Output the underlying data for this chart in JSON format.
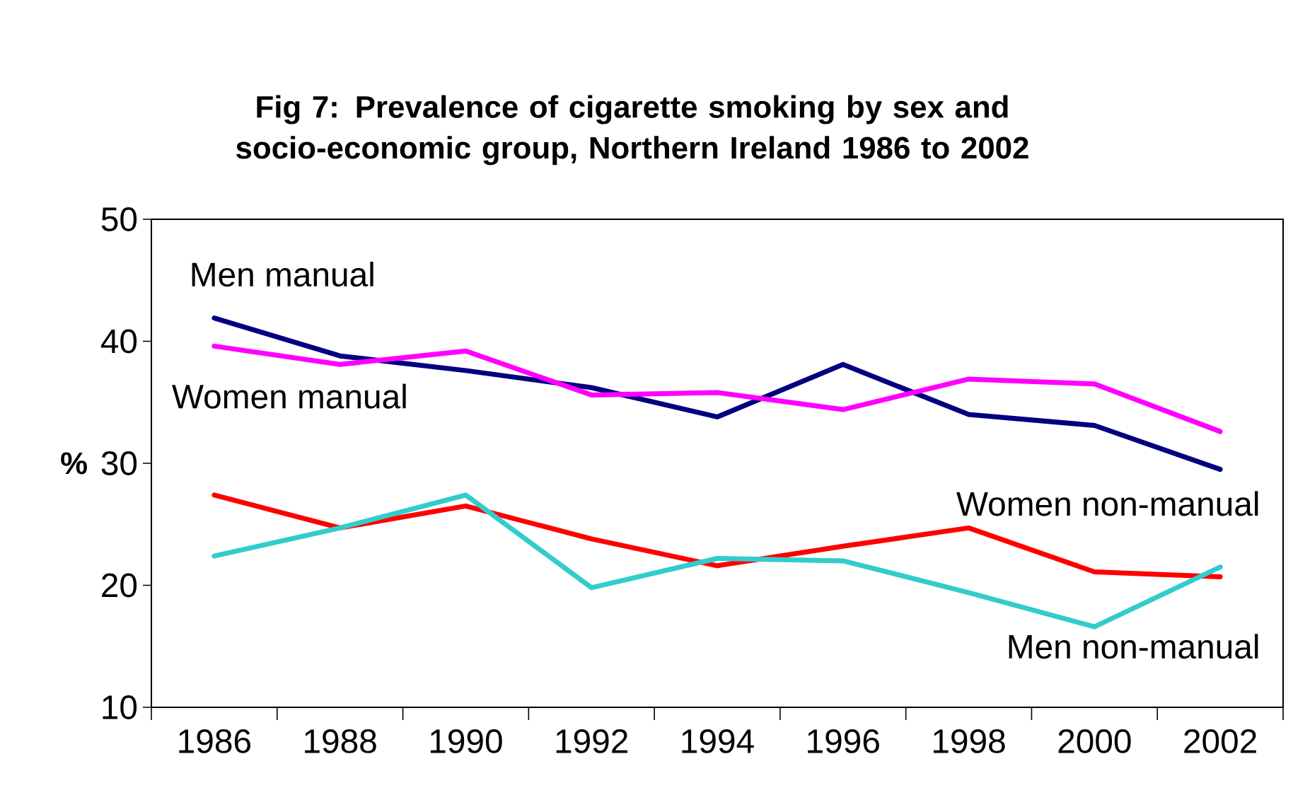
{
  "chart_data": {
    "type": "line",
    "title": "Fig 7: Prevalence of cigarette smoking by sex and socio-economic group, Northern Ireland 1986 to 2002",
    "ylabel": "%",
    "categories": [
      "1986",
      "1988",
      "1990",
      "1992",
      "1994",
      "1996",
      "1998",
      "2000",
      "2002"
    ],
    "ylim": [
      10,
      50
    ],
    "yticks": [
      10,
      20,
      30,
      40,
      50
    ],
    "series": [
      {
        "name": "Men manual",
        "color": "#000080",
        "values": [
          41.9,
          38.8,
          37.6,
          36.2,
          33.8,
          38.1,
          34.0,
          33.1,
          29.5
        ]
      },
      {
        "name": "Women manual",
        "color": "#ff00ff",
        "values": [
          39.6,
          38.1,
          39.2,
          35.6,
          35.8,
          34.4,
          36.9,
          36.5,
          32.6
        ]
      },
      {
        "name": "Women non-manual",
        "color": "#ff0000",
        "values": [
          27.4,
          24.7,
          26.5,
          23.8,
          21.6,
          23.2,
          24.7,
          21.1,
          20.7
        ]
      },
      {
        "name": "Men non-manual",
        "color": "#33cccc",
        "values": [
          22.4,
          24.7,
          27.4,
          19.8,
          22.2,
          22.0,
          19.4,
          16.6,
          21.5
        ]
      }
    ]
  }
}
